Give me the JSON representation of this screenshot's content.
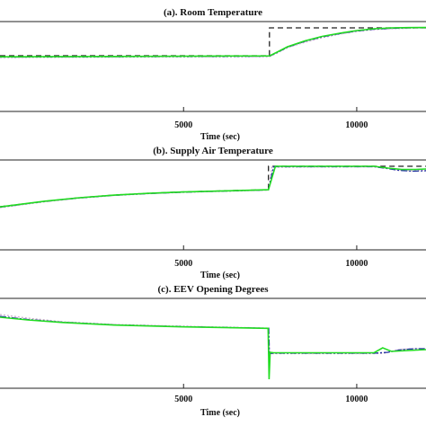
{
  "figure": {
    "x_ticks": [
      5000,
      10000
    ],
    "x_lim": [
      -300,
      12000
    ]
  },
  "chart_data": [
    {
      "type": "line",
      "title": "(a). Room Temperature",
      "xlabel": "Time (sec)",
      "ylabel": "",
      "xlim": [
        -300,
        12000
      ],
      "ylim": [
        0,
        1
      ],
      "grid": false,
      "series": [
        {
          "color": "#222222",
          "dash": "6,4",
          "x": [
            -300,
            7480,
            7480,
            12000
          ],
          "y": [
            0.62,
            0.62,
            0.93,
            0.93
          ]
        },
        {
          "color": "#c8a8c8",
          "dash": "2,2",
          "x": [
            -300,
            7480,
            7700,
            8000,
            8500,
            9000,
            9500,
            10000,
            10500,
            11000,
            11500,
            12000
          ],
          "y": [
            0.6,
            0.61,
            0.65,
            0.71,
            0.77,
            0.82,
            0.86,
            0.89,
            0.91,
            0.92,
            0.925,
            0.93
          ]
        },
        {
          "color": "#1f2f9f",
          "dash": "7,2,2,2",
          "x": [
            -300,
            7480,
            7700,
            8000,
            8500,
            9000,
            9500,
            10000,
            10500,
            11000,
            11500,
            12000
          ],
          "y": [
            0.605,
            0.615,
            0.655,
            0.715,
            0.78,
            0.83,
            0.865,
            0.895,
            0.915,
            0.925,
            0.93,
            0.932
          ]
        },
        {
          "color": "#22dd22",
          "dash": "",
          "x": [
            -300,
            7480,
            7700,
            8000,
            8500,
            9000,
            9500,
            10000,
            10500,
            11000,
            11500,
            12000
          ],
          "y": [
            0.608,
            0.618,
            0.66,
            0.72,
            0.785,
            0.835,
            0.87,
            0.9,
            0.92,
            0.93,
            0.933,
            0.934
          ]
        }
      ]
    },
    {
      "type": "line",
      "title": "(b). Supply Air Temperature",
      "xlabel": "Time (sec)",
      "ylabel": "",
      "xlim": [
        -300,
        12000
      ],
      "ylim": [
        0,
        1
      ],
      "grid": false,
      "series": [
        {
          "color": "#222222",
          "dash": "6,4",
          "x": [
            -300,
            1000,
            2000,
            3000,
            4000,
            5000,
            6000,
            7000,
            7450,
            7450,
            12000
          ],
          "y": [
            0.48,
            0.54,
            0.58,
            0.61,
            0.63,
            0.645,
            0.655,
            0.665,
            0.67,
            0.93,
            0.93
          ]
        },
        {
          "color": "#c8a8c8",
          "dash": "2,2",
          "x": [
            -300,
            1000,
            2000,
            3000,
            4000,
            5000,
            6000,
            7000,
            7450,
            7550,
            10500,
            10800,
            11200,
            11600,
            12000
          ],
          "y": [
            0.47,
            0.535,
            0.575,
            0.605,
            0.625,
            0.64,
            0.65,
            0.66,
            0.665,
            0.92,
            0.925,
            0.91,
            0.89,
            0.88,
            0.885
          ]
        },
        {
          "color": "#1f2f9f",
          "dash": "7,2,2,2",
          "x": [
            -300,
            1000,
            2000,
            3000,
            4000,
            5000,
            6000,
            7000,
            7450,
            7600,
            10500,
            10800,
            11200,
            11600,
            12000
          ],
          "y": [
            0.475,
            0.54,
            0.578,
            0.607,
            0.627,
            0.642,
            0.652,
            0.662,
            0.667,
            0.925,
            0.925,
            0.91,
            0.885,
            0.875,
            0.88
          ]
        },
        {
          "color": "#22dd22",
          "dash": "",
          "x": [
            -300,
            1000,
            2000,
            3000,
            4000,
            5000,
            6000,
            7000,
            7450,
            7650,
            10500,
            10900,
            11300,
            11700,
            12000
          ],
          "y": [
            0.478,
            0.542,
            0.58,
            0.609,
            0.629,
            0.644,
            0.654,
            0.664,
            0.669,
            0.93,
            0.93,
            0.91,
            0.895,
            0.895,
            0.9
          ]
        }
      ]
    },
    {
      "type": "line",
      "title": "(c). EEV Opening Degrees",
      "xlabel": "Time (sec)",
      "ylabel": "",
      "xlim": [
        -300,
        12000
      ],
      "ylim": [
        0,
        1
      ],
      "grid": false,
      "series": [
        {
          "color": "#c8a8c8",
          "dash": "2,2",
          "x": [
            -300,
            500,
            1500,
            3000,
            5000,
            7400,
            7460,
            7480,
            7600,
            10500,
            10800,
            11200,
            11600,
            12000
          ],
          "y": [
            0.82,
            0.78,
            0.74,
            0.71,
            0.69,
            0.67,
            0.67,
            0.38,
            0.385,
            0.385,
            0.39,
            0.43,
            0.44,
            0.44
          ]
        },
        {
          "color": "#1f2f9f",
          "dash": "7,2,2,2",
          "x": [
            -300,
            500,
            1500,
            3000,
            5000,
            7400,
            7460,
            7480,
            7600,
            10500,
            10900,
            11300,
            11700,
            12000
          ],
          "y": [
            0.8,
            0.765,
            0.735,
            0.705,
            0.685,
            0.668,
            0.668,
            0.385,
            0.39,
            0.39,
            0.4,
            0.43,
            0.44,
            0.44
          ]
        },
        {
          "color": "#22dd22",
          "dash": "",
          "x": [
            -300,
            500,
            1500,
            3000,
            5000,
            7400,
            7440,
            7470,
            7500,
            7600,
            10500,
            10750,
            11000,
            11500,
            12000
          ],
          "y": [
            0.79,
            0.76,
            0.732,
            0.703,
            0.683,
            0.667,
            0.667,
            0.1,
            0.4,
            0.395,
            0.395,
            0.45,
            0.41,
            0.42,
            0.43
          ]
        }
      ]
    }
  ]
}
